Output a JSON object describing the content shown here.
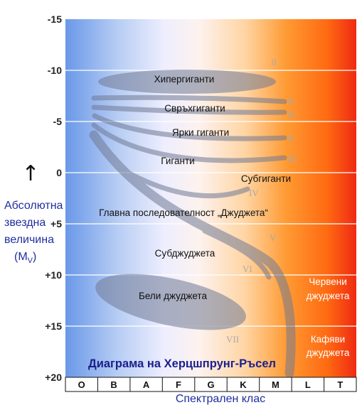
{
  "title": "Диаграма на Херцшпрунг-Ръсел",
  "y_axis": {
    "label_line1": "Абсолютна",
    "label_line2": "звездна",
    "label_line3": "величина",
    "label_symbol": "(M",
    "label_sub": "V",
    "label_close": ")",
    "arrow": "↑",
    "ticks": [
      "-15",
      "-10",
      "-5",
      "0",
      "+5",
      "+10",
      "+15",
      "+20"
    ]
  },
  "x_axis": {
    "label": "Спектрален клас",
    "ticks": [
      "O",
      "B",
      "A",
      "F",
      "G",
      "K",
      "M",
      "L",
      "T"
    ]
  },
  "regions": {
    "hypergiants": "Хипергиганти",
    "supergiants": "Свръхгиганти",
    "bright_giants": "Ярки гиганти",
    "giants": "Гиганти",
    "subgiants": "Субгиганти",
    "main_sequence": "Главна последователност „Джуджета“",
    "subdwarfs": "Субджуджета",
    "white_dwarfs": "Бели джуджета",
    "red_dwarfs_1": "Червени",
    "red_dwarfs_2": "джуджета",
    "brown_dwarfs_1": "Кафяви",
    "brown_dwarfs_2": "джуджета"
  },
  "luminosity_classes": [
    "0",
    "Ia",
    "Ib",
    "II",
    "III",
    "IV",
    "V",
    "VI",
    "VII"
  ],
  "colors": {
    "hot_blue": "#6a98e8",
    "mid_white": "#f0eeff",
    "cool_orange": "#ff8a1a",
    "coolest_red": "#ee2a12",
    "band_gray": "#707a94",
    "title_blue": "#1a1f8c"
  }
}
